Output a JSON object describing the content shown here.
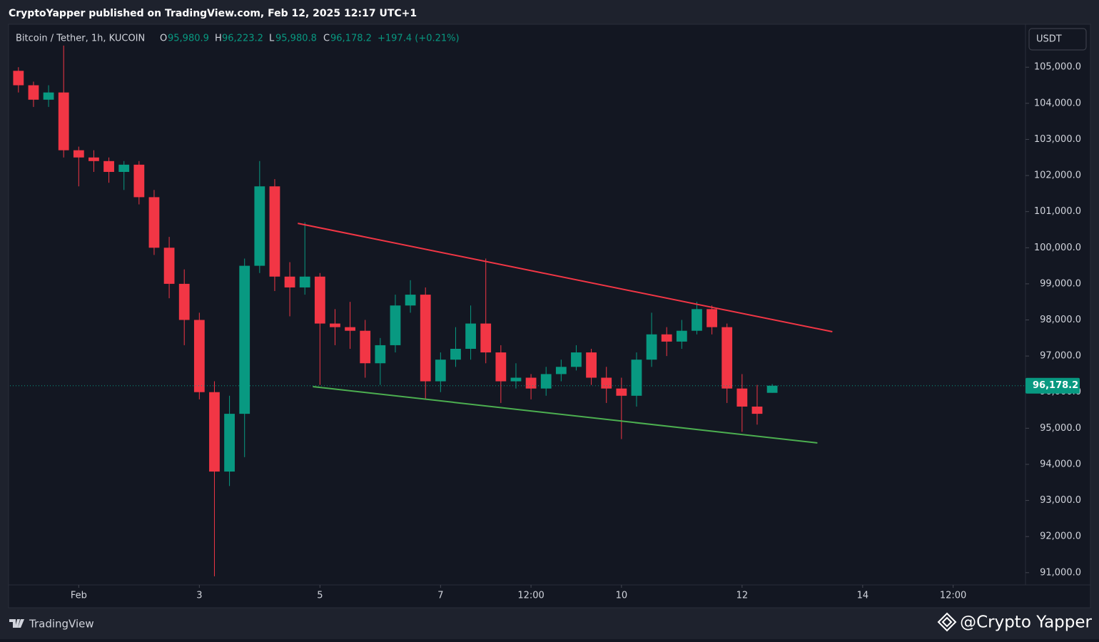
{
  "page": {
    "published": "CryptoYapper published on TradingView.com, Feb 12, 2025 12:17 UTC+1",
    "brand": "TradingView",
    "watermark": "@Crypto Yapper"
  },
  "chart_data": {
    "type": "candlestick",
    "symbol": "Bitcoin / Tether, 1h, KUCOIN",
    "legend": {
      "open_label": "O",
      "open": "95,980.9",
      "high_label": "H",
      "high": "96,223.2",
      "low_label": "L",
      "low": "95,980.8",
      "close_label": "C",
      "close": "96,178.2",
      "change": "+197.4 (+0.21%)"
    },
    "currency": "USDT",
    "up_color": "#089981",
    "down_color": "#f23645",
    "x": [
      0,
      0.25,
      0.5,
      0.75,
      1,
      1.25,
      1.5,
      1.75,
      2,
      2.25,
      2.5,
      2.75,
      3,
      3.25,
      3.5,
      3.75,
      4,
      4.25,
      4.5,
      4.75,
      5,
      5.25,
      5.5,
      5.75,
      6,
      6.25,
      6.5,
      6.75,
      7,
      7.25,
      7.5,
      7.75,
      8,
      8.25,
      8.5,
      8.75,
      9,
      9.25,
      9.5,
      9.75,
      10,
      10.25,
      10.5,
      10.75,
      11,
      11.25,
      11.5,
      11.75,
      12,
      12.25,
      12.5
    ],
    "open": [
      104900,
      104500,
      104100,
      104300,
      102700,
      102500,
      102400,
      102100,
      102300,
      101400,
      100000,
      99000,
      98000,
      96000,
      93800,
      95400,
      99500,
      101700,
      99200,
      98900,
      99200,
      97900,
      97800,
      97700,
      96800,
      97300,
      98400,
      98700,
      96300,
      96900,
      97200,
      97900,
      97100,
      96300,
      96400,
      96100,
      96500,
      96700,
      97100,
      96400,
      96100,
      95900,
      96900,
      97600,
      97400,
      97700,
      98300,
      97800,
      96100,
      95600,
      95980.9
    ],
    "high": [
      105000,
      104600,
      104500,
      105600,
      102800,
      102700,
      102500,
      102400,
      102400,
      101600,
      100300,
      99400,
      98200,
      96300,
      95900,
      99700,
      102400,
      101900,
      99600,
      100700,
      99300,
      98300,
      98500,
      98000,
      97500,
      98700,
      99100,
      98900,
      97100,
      97800,
      98400,
      99700,
      97300,
      96800,
      96500,
      96700,
      96900,
      97300,
      97200,
      96700,
      96400,
      97100,
      98200,
      97800,
      98000,
      98500,
      98400,
      97900,
      96500,
      96200,
      96223.2
    ],
    "low": [
      104300,
      103900,
      103900,
      102500,
      101700,
      102100,
      101800,
      101600,
      101200,
      99800,
      98600,
      97300,
      95800,
      90900,
      93400,
      94200,
      99300,
      98800,
      98100,
      98700,
      96200,
      97300,
      97200,
      96400,
      96200,
      97100,
      98200,
      95800,
      96000,
      96700,
      96900,
      96800,
      95700,
      96100,
      95800,
      95900,
      96300,
      96600,
      96200,
      95700,
      94700,
      95600,
      96700,
      97000,
      97200,
      97600,
      97600,
      95700,
      94900,
      95100,
      95980.8
    ],
    "close": [
      104500,
      104100,
      104300,
      102700,
      102500,
      102400,
      102100,
      102300,
      101400,
      100000,
      99000,
      98000,
      96000,
      93800,
      95400,
      99500,
      101700,
      99200,
      98900,
      99200,
      97900,
      97800,
      97700,
      96800,
      97300,
      98400,
      98700,
      96300,
      96900,
      97200,
      97900,
      97100,
      96300,
      96400,
      96100,
      96500,
      96700,
      97100,
      96400,
      96100,
      95900,
      96900,
      97600,
      97400,
      97700,
      98300,
      97800,
      96100,
      95600,
      95400,
      96178.2
    ],
    "trend_lines": [
      {
        "color": "#f23645",
        "x": [
          4.633,
          13.497
        ],
        "y": [
          100675,
          97674
        ]
      },
      {
        "color": "#4caf50",
        "x": [
          4.882,
          13.249
        ],
        "y": [
          96153,
          94593
        ]
      }
    ],
    "last_price": {
      "value": 96178.2,
      "label": "96,178.2"
    },
    "xlim": [
      -0.14,
      16.7
    ],
    "ylim": [
      90660,
      106170
    ],
    "xticks": [
      {
        "value": 1,
        "label": "Feb"
      },
      3,
      5,
      7,
      {
        "value": 8.5,
        "label": "12:00"
      },
      10,
      12,
      14,
      {
        "value": 15.5,
        "label": "12:00"
      }
    ],
    "yticks": [
      {
        "value": 91000,
        "label": "91,000.0"
      },
      {
        "value": 92000,
        "label": "92,000.0"
      },
      {
        "value": 93000,
        "label": "93,000.0"
      },
      {
        "value": 94000,
        "label": "94,000.0"
      },
      {
        "value": 95000,
        "label": "95,000.0"
      },
      {
        "value": 96000,
        "label": "96,000.0"
      },
      {
        "value": 97000,
        "label": "97,000.0"
      },
      {
        "value": 98000,
        "label": "98,000.0"
      },
      {
        "value": 99000,
        "label": "99,000.0"
      },
      {
        "value": 100000,
        "label": "100,000.0"
      },
      {
        "value": 101000,
        "label": "101,000.0"
      },
      {
        "value": 102000,
        "label": "102,000.0"
      },
      {
        "value": 103000,
        "label": "103,000.0"
      },
      {
        "value": 104000,
        "label": "104,000.0"
      },
      {
        "value": 105000,
        "label": "105,000.0"
      }
    ]
  }
}
